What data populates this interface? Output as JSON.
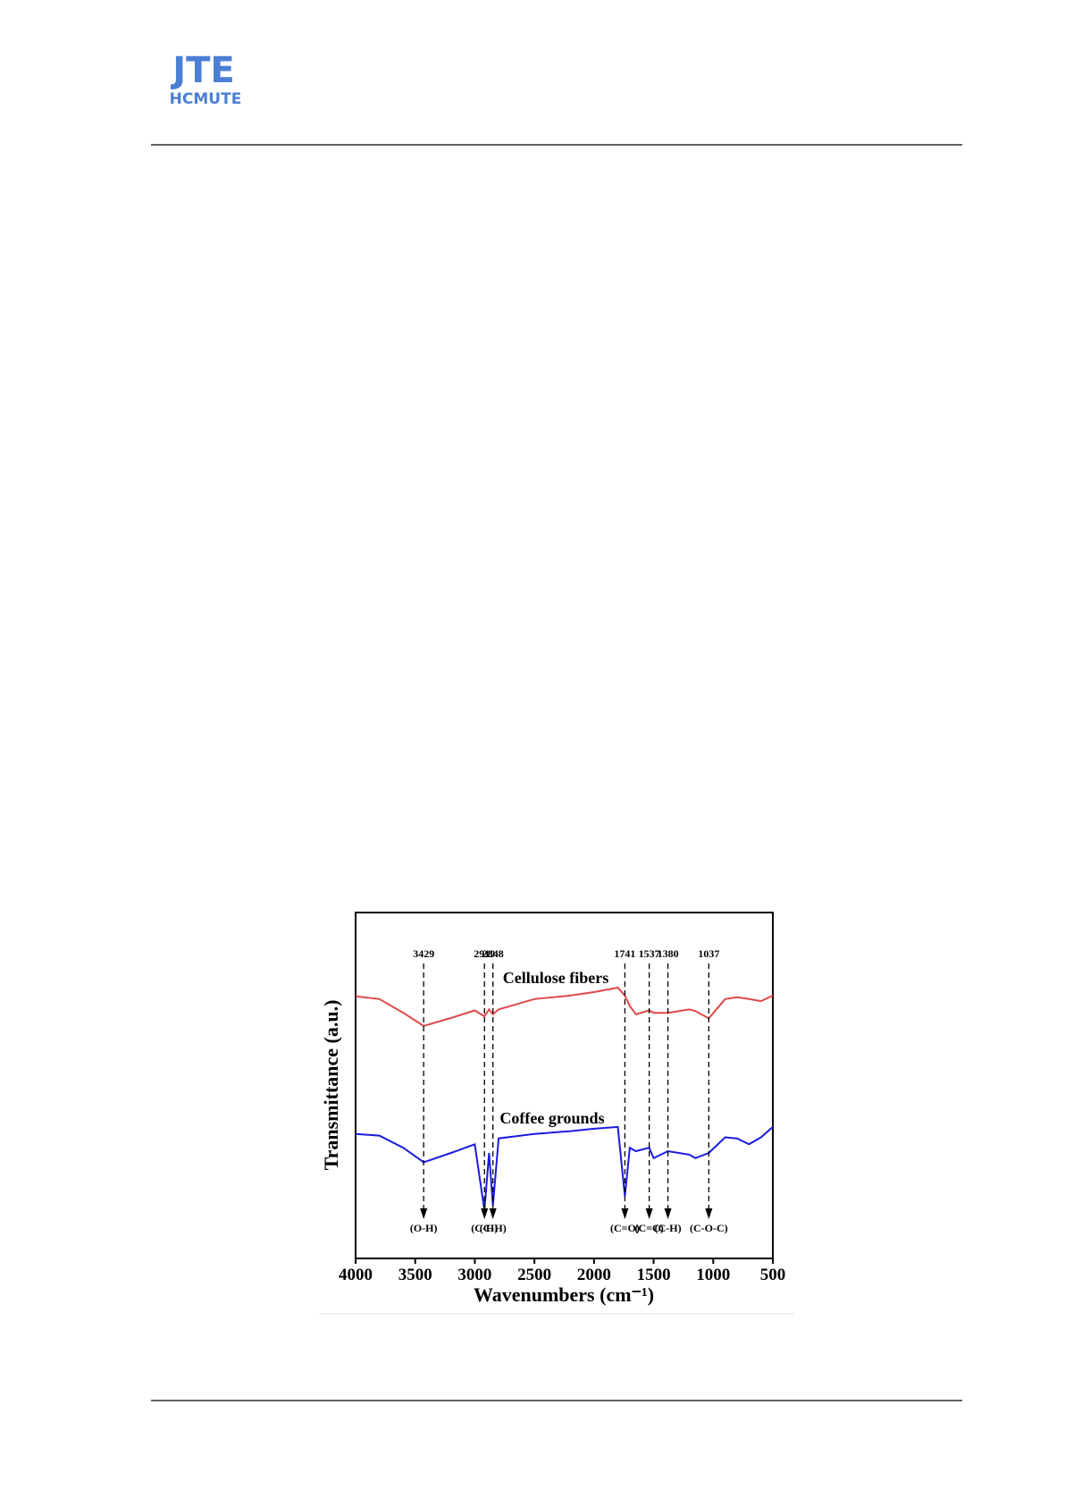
{
  "header": {
    "logo_title": "JTE",
    "logo_subtitle": "HCMUTE"
  },
  "chart_data": {
    "type": "line",
    "x_label": "Wavenumbers (cm⁻¹)",
    "y_label": "Transmittance (a.u.)",
    "xlim": [
      4000,
      500
    ],
    "xticks": [
      4000,
      3500,
      3000,
      2500,
      2000,
      1500,
      1000,
      500
    ],
    "ylim": [
      0,
      100
    ],
    "x": [
      4000,
      3800,
      3600,
      3429,
      3200,
      3000,
      2919,
      2880,
      2848,
      2800,
      2500,
      2200,
      2000,
      1800,
      1741,
      1700,
      1650,
      1537,
      1500,
      1380,
      1200,
      1150,
      1037,
      900,
      800,
      700,
      600,
      500
    ],
    "series": [
      {
        "name": "Cellulose fibers",
        "color": "#e04848",
        "values": [
          75.8,
          75,
          71,
          67.2,
          69.5,
          71.7,
          70,
          72,
          70.6,
          72,
          75,
          76,
          77,
          78.3,
          76,
          73,
          70.6,
          71.7,
          71,
          71,
          72,
          71.5,
          69.4,
          75,
          75.5,
          75,
          74.4,
          76
        ]
      },
      {
        "name": "Coffee grounds",
        "color": "#1a1ae0",
        "values": [
          36,
          35.5,
          32,
          27.8,
          30.5,
          33,
          13.9,
          30.5,
          15.3,
          34.7,
          36,
          36.8,
          37.5,
          38,
          18,
          32,
          31,
          32,
          29,
          31,
          30,
          29,
          30.5,
          35,
          34.7,
          33,
          35,
          38
        ]
      }
    ],
    "peaks": [
      {
        "x": 3429,
        "bond": "(O-H)"
      },
      {
        "x": 2919,
        "bond": "(C-H)"
      },
      {
        "x": 2848,
        "bond": "(C-H)"
      },
      {
        "x": 1741,
        "bond": "(C=O)"
      },
      {
        "x": 1537,
        "bond": "(C=C)"
      },
      {
        "x": 1380,
        "bond": "(C-H)"
      },
      {
        "x": 1037,
        "bond": "(C-O-C)"
      }
    ]
  }
}
